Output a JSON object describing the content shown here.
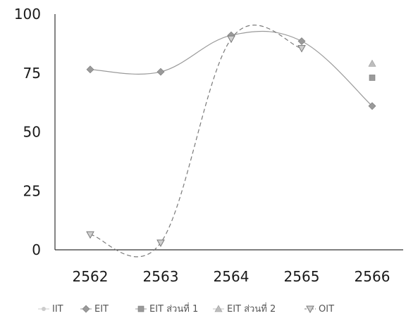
{
  "chart_data": {
    "type": "line",
    "categories": [
      "2562",
      "2563",
      "2564",
      "2565",
      "2566"
    ],
    "ylim": [
      0,
      100
    ],
    "y_ticks": [
      "0",
      "25",
      "50",
      "75",
      "100"
    ],
    "grid": false,
    "legend_position": "bottom",
    "series": [
      {
        "name": "IIT",
        "values": [
          null,
          null,
          null,
          null,
          null
        ],
        "marker": "dot",
        "color": "#cccccc",
        "dashed": false
      },
      {
        "name": "EIT",
        "values": [
          76.5,
          75.5,
          91,
          88.5,
          61
        ],
        "marker": "diamond",
        "color": "#9a9a9a",
        "dashed": false
      },
      {
        "name": "EIT ส่วนที่ 1",
        "values": [
          null,
          null,
          null,
          null,
          73
        ],
        "marker": "square",
        "color": "#9a9a9a",
        "dashed": false
      },
      {
        "name": "EIT ส่วนที่ 2",
        "values": [
          null,
          null,
          null,
          null,
          79
        ],
        "marker": "triangle",
        "color": "#bdbdbd",
        "dashed": false
      },
      {
        "name": "OIT",
        "values": [
          6.5,
          3,
          89.5,
          85.5,
          null
        ],
        "marker": "triangle-down",
        "color": "#7a7a7a",
        "dashed": true
      }
    ]
  }
}
